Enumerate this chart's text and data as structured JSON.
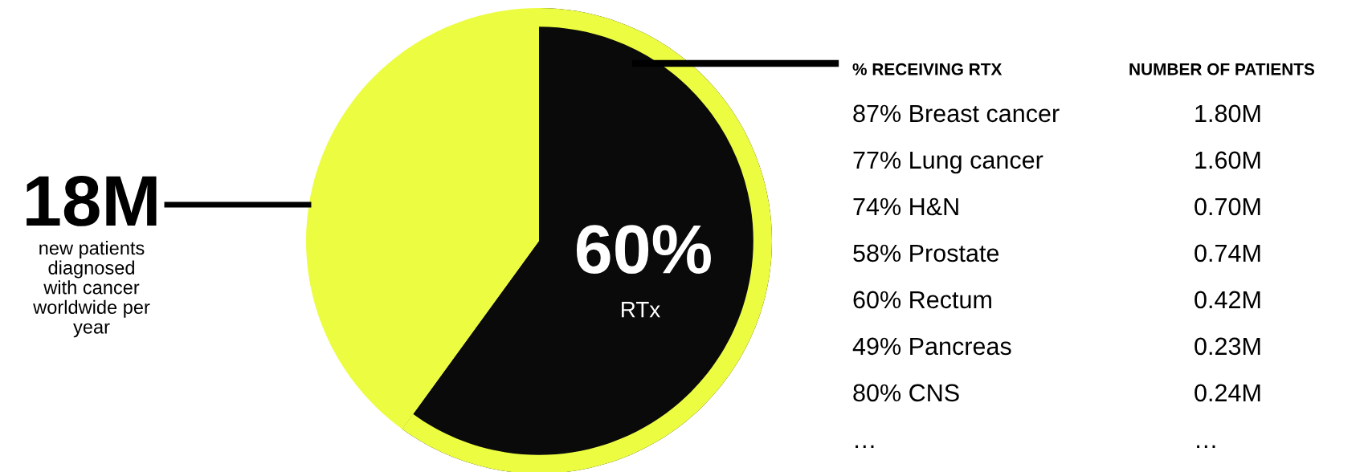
{
  "chart_data": {
    "type": "pie",
    "categories": [
      "RTx",
      null
    ],
    "values": [
      60,
      40
    ],
    "colors": [
      "#0a0a0a",
      "#ecfd41"
    ],
    "value_labels": [
      "60%",
      null
    ],
    "annotations": [
      "18M",
      "new patients\ndiagnosed\nwith cancer\nworldwide per\nyear",
      "% RECEIVING RTX",
      "NUMBER OF PATIENTS",
      "87% Breast cancer",
      "1.80M",
      "77% Lung cancer",
      "1.60M",
      "74% H&N",
      "0.70M",
      "58% Prostate",
      "0.74M",
      "60% Rectum",
      "0.42M",
      "49% Pancreas",
      "0.23M",
      "80% CNS",
      "0.24M",
      "…",
      "…"
    ]
  }
}
